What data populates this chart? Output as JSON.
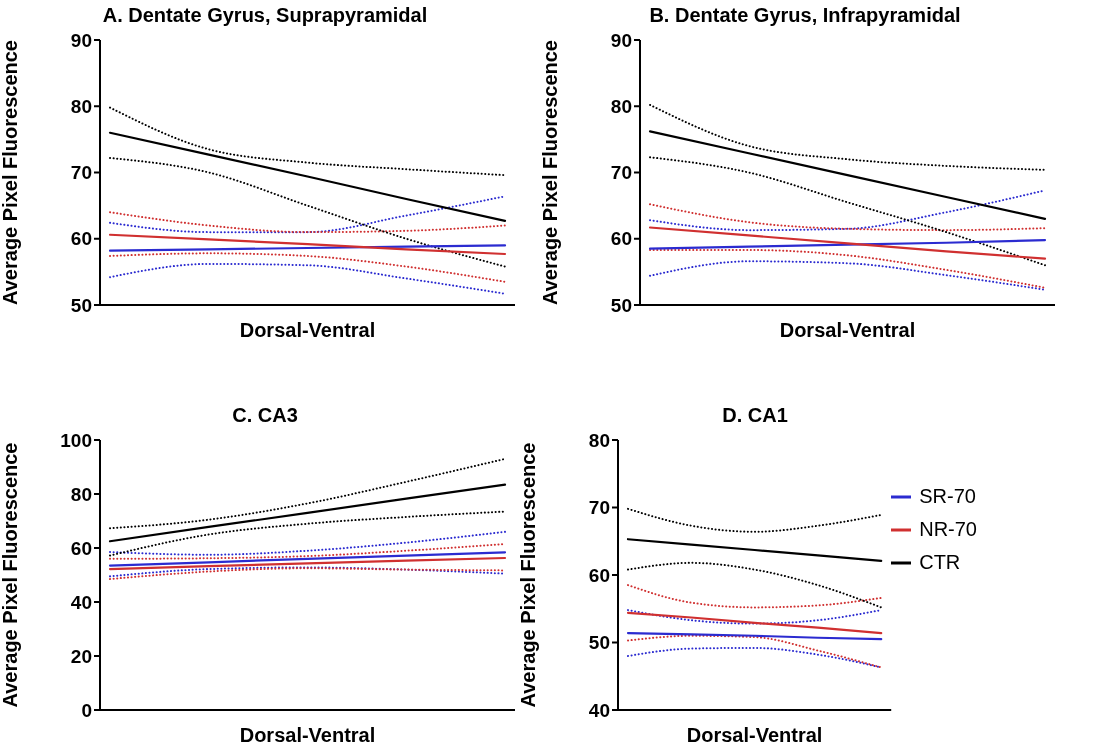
{
  "chart_data": [
    {
      "type": "line",
      "title": "A. Dentate Gyrus, Suprapyramidal",
      "xlabel": "Dorsal-Ventral",
      "ylabel": "Average Pixel Fluorescence",
      "categories": [
        null,
        null,
        null,
        null,
        null
      ],
      "ylim": [
        50,
        90
      ],
      "yticks": [
        50,
        60,
        70,
        80,
        90
      ],
      "grid": false,
      "legend": false,
      "line_style": "solid",
      "series": [
        {
          "color": "#2b2bd0",
          "values": [
            54.2,
            56.2,
            56,
            54,
            51.7
          ],
          "line_style": "dotted"
        },
        {
          "color": "#2b2bd0",
          "values": [
            62.4,
            61,
            61,
            63.5,
            66.4
          ],
          "line_style": "dotted"
        },
        {
          "color": "#d03030",
          "values": [
            57.4,
            57.8,
            57.4,
            55.8,
            53.5
          ],
          "line_style": "dotted"
        },
        {
          "color": "#d03030",
          "values": [
            64,
            62,
            61,
            61.2,
            62
          ],
          "line_style": "dotted"
        },
        {
          "color": "#000000",
          "values": [
            72.2,
            70,
            65,
            60,
            55.8
          ],
          "line_style": "dotted"
        },
        {
          "color": "#000000",
          "values": [
            79.8,
            73.5,
            71.5,
            70.5,
            69.6
          ],
          "line_style": "dotted"
        },
        {
          "color": "#2b2bd0",
          "values": [
            58.2,
            58.4,
            58.6,
            58.8,
            59
          ]
        },
        {
          "color": "#d03030",
          "values": [
            60.6,
            59.9,
            59.2,
            58.4,
            57.7
          ]
        },
        {
          "color": "#000000",
          "values": [
            76,
            72.7,
            69.4,
            66,
            62.7
          ]
        }
      ]
    },
    {
      "type": "line",
      "title": "B. Dentate Gyrus, Infrapyramidal",
      "xlabel": "Dorsal-Ventral",
      "ylabel": "Average Pixel Fluorescence",
      "categories": [
        null,
        null,
        null,
        null,
        null
      ],
      "ylim": [
        50,
        90
      ],
      "yticks": [
        50,
        60,
        70,
        80,
        90
      ],
      "grid": false,
      "legend": false,
      "line_style": "solid",
      "series": [
        {
          "color": "#2b2bd0",
          "values": [
            54.4,
            56.6,
            56.3,
            54.5,
            52.3
          ],
          "line_style": "dotted"
        },
        {
          "color": "#2b2bd0",
          "values": [
            62.8,
            61.3,
            61.5,
            64,
            67.3
          ],
          "line_style": "dotted"
        },
        {
          "color": "#d03030",
          "values": [
            58.3,
            58.3,
            57.5,
            55.3,
            52.6
          ],
          "line_style": "dotted"
        },
        {
          "color": "#d03030",
          "values": [
            65.2,
            62.5,
            61.5,
            61.3,
            61.6
          ],
          "line_style": "dotted"
        },
        {
          "color": "#000000",
          "values": [
            72.3,
            70,
            65.5,
            61,
            56
          ],
          "line_style": "dotted"
        },
        {
          "color": "#000000",
          "values": [
            80.2,
            74,
            72,
            71,
            70.4
          ],
          "line_style": "dotted"
        },
        {
          "color": "#2b2bd0",
          "values": [
            58.5,
            58.8,
            59.1,
            59.4,
            59.8
          ]
        },
        {
          "color": "#d03030",
          "values": [
            61.7,
            60.5,
            59.3,
            58.1,
            57
          ]
        },
        {
          "color": "#000000",
          "values": [
            76.2,
            72.9,
            69.6,
            66.3,
            63
          ]
        }
      ]
    },
    {
      "type": "line",
      "title": "C. CA3",
      "xlabel": "Dorsal-Ventral",
      "ylabel": "Average Pixel Fluorescence",
      "categories": [
        null,
        null,
        null,
        null,
        null
      ],
      "ylim": [
        0,
        100
      ],
      "yticks": [
        0,
        20,
        40,
        60,
        80,
        100
      ],
      "grid": false,
      "legend": false,
      "line_style": "solid",
      "series": [
        {
          "color": "#2b2bd0",
          "values": [
            49.5,
            52.2,
            52.8,
            52,
            50.5
          ],
          "line_style": "dotted"
        },
        {
          "color": "#2b2bd0",
          "values": [
            58.5,
            57.5,
            59,
            62,
            66
          ],
          "line_style": "dotted"
        },
        {
          "color": "#d03030",
          "values": [
            48.5,
            51.3,
            52.5,
            52,
            51.7
          ],
          "line_style": "dotted"
        },
        {
          "color": "#d03030",
          "values": [
            56,
            56.2,
            57,
            59,
            61.5
          ],
          "line_style": "dotted"
        },
        {
          "color": "#000000",
          "values": [
            57.2,
            65,
            69,
            71.5,
            73.5
          ],
          "line_style": "dotted"
        },
        {
          "color": "#000000",
          "values": [
            67.3,
            70.5,
            76.5,
            84.5,
            93
          ],
          "line_style": "dotted"
        },
        {
          "color": "#2b2bd0",
          "values": [
            53.5,
            54.7,
            56,
            57.2,
            58.4
          ]
        },
        {
          "color": "#d03030",
          "values": [
            52.2,
            53.3,
            54.3,
            55.3,
            56.3
          ]
        },
        {
          "color": "#000000",
          "values": [
            62.5,
            67.8,
            73,
            78.3,
            83.5
          ]
        }
      ]
    },
    {
      "type": "line",
      "title": "D. CA1",
      "xlabel": "Dorsal-Ventral",
      "ylabel": "Average Pixel Fluorescence",
      "categories": [
        null,
        null,
        null,
        null,
        null
      ],
      "ylim": [
        40,
        80
      ],
      "yticks": [
        40,
        50,
        60,
        70,
        80
      ],
      "grid": false,
      "legend": "right",
      "line_style": "solid",
      "series": [
        {
          "color": "#2b2bd0",
          "values": [
            48,
            49.1,
            49.2,
            48.2,
            46.3
          ],
          "line_style": "dotted"
        },
        {
          "color": "#2b2bd0",
          "values": [
            54.8,
            53.3,
            52.8,
            53.3,
            54.8
          ],
          "line_style": "dotted"
        },
        {
          "color": "#d03030",
          "values": [
            50.3,
            51,
            50.8,
            48.8,
            46.3
          ],
          "line_style": "dotted"
        },
        {
          "color": "#d03030",
          "values": [
            58.5,
            55.9,
            55.2,
            55.5,
            56.6
          ],
          "line_style": "dotted"
        },
        {
          "color": "#000000",
          "values": [
            60.8,
            61.8,
            60.8,
            58.5,
            55.2
          ],
          "line_style": "dotted"
        },
        {
          "color": "#000000",
          "values": [
            69.8,
            67.3,
            66.4,
            67.3,
            68.9
          ],
          "line_style": "dotted"
        },
        {
          "name": "SR-70",
          "color": "#2b2bd0",
          "values": [
            51.4,
            51.2,
            51,
            50.7,
            50.5
          ]
        },
        {
          "name": "NR-70",
          "color": "#d03030",
          "values": [
            54.4,
            53.7,
            52.9,
            52.2,
            51.4
          ]
        },
        {
          "name": "CTR",
          "color": "#000000",
          "values": [
            65.3,
            64.5,
            63.7,
            62.9,
            62.1
          ]
        }
      ]
    }
  ]
}
